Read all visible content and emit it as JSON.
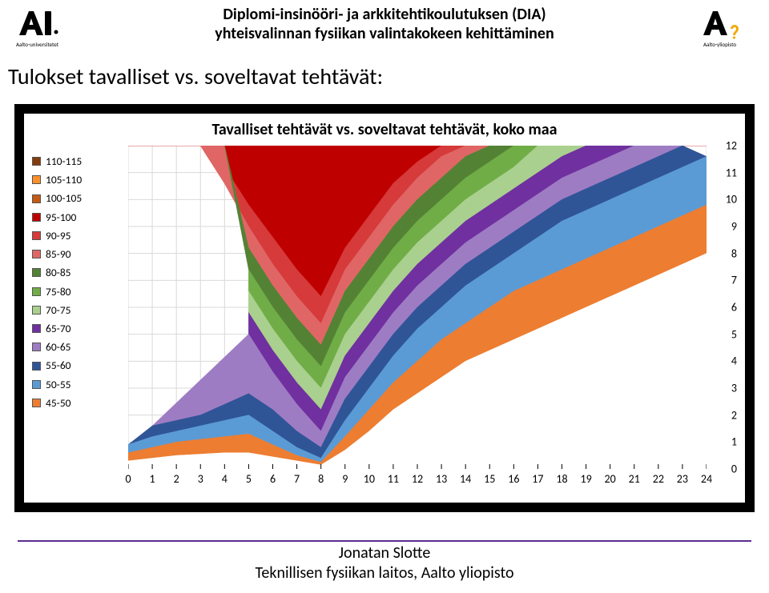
{
  "header": {
    "line1": "Diplomi-insinööri- ja arkkitehtikoulutuksen (DIA)",
    "line2": "yhteisvalinnan fysiikan valintakokeen kehittäminen"
  },
  "subtitle": "Tulokset tavalliset vs. soveltavat tehtävät:",
  "chart": {
    "type": "area-stacked-contour",
    "title": "Tavalliset tehtävät vs. soveltavat tehtävät, koko maa",
    "title_fontsize": 20,
    "background_color": "#ffffff",
    "frame_color": "#000000",
    "grid_color": "#d9d9d9",
    "x": {
      "min": 0,
      "max": 24,
      "tick_step": 1,
      "ticks": [
        0,
        1,
        2,
        3,
        4,
        5,
        6,
        7,
        8,
        9,
        10,
        11,
        12,
        13,
        14,
        15,
        16,
        17,
        18,
        19,
        20,
        21,
        22,
        23,
        24
      ]
    },
    "y": {
      "min": 0,
      "max": 12,
      "tick_step": 1,
      "ticks": [
        0,
        1,
        2,
        3,
        4,
        5,
        6,
        7,
        8,
        9,
        10,
        11,
        12
      ]
    },
    "legend_items": [
      {
        "label": "110-115",
        "color": "#843c0c"
      },
      {
        "label": "105-110",
        "color": "#ff8f2b"
      },
      {
        "label": "100-105",
        "color": "#c55a11"
      },
      {
        "label": "95-100",
        "color": "#bf0000"
      },
      {
        "label": "90-95",
        "color": "#d63a3a"
      },
      {
        "label": "85-90",
        "color": "#e06666"
      },
      {
        "label": "80-85",
        "color": "#548235"
      },
      {
        "label": "75-80",
        "color": "#70ad47"
      },
      {
        "label": "70-75",
        "color": "#a9d08e"
      },
      {
        "label": "65-70",
        "color": "#7030a0"
      },
      {
        "label": "60-65",
        "color": "#9e7cc3"
      },
      {
        "label": "55-60",
        "color": "#2f5597"
      },
      {
        "label": "50-55",
        "color": "#5b9bd5"
      },
      {
        "label": "45-50",
        "color": "#ed7d31"
      }
    ],
    "layers": [
      {
        "color": "#bf0000",
        "pts": [
          [
            0,
            12
          ],
          [
            3,
            12
          ],
          [
            4,
            11.2
          ],
          [
            5,
            9.8
          ],
          [
            6,
            8.6
          ],
          [
            7,
            7.4
          ],
          [
            8,
            6.4
          ],
          [
            9,
            8.2
          ],
          [
            10,
            9.4
          ],
          [
            11,
            10.6
          ],
          [
            12,
            11.4
          ],
          [
            13,
            12
          ],
          [
            24,
            12
          ]
        ],
        "base": 12,
        "close": "top"
      },
      {
        "color": "#d63a3a",
        "pts": [
          [
            3,
            12
          ],
          [
            4,
            10.6
          ],
          [
            5,
            9.0
          ],
          [
            6,
            7.6
          ],
          [
            7,
            6.4
          ],
          [
            8,
            5.4
          ],
          [
            9,
            7.4
          ],
          [
            10,
            8.6
          ],
          [
            11,
            9.8
          ],
          [
            12,
            10.8
          ],
          [
            13,
            11.6
          ],
          [
            14,
            12
          ]
        ],
        "close": "prev"
      },
      {
        "color": "#e06666",
        "pts": [
          [
            4,
            12
          ],
          [
            5,
            8.2
          ],
          [
            6,
            6.8
          ],
          [
            7,
            5.6
          ],
          [
            8,
            4.6
          ],
          [
            9,
            6.6
          ],
          [
            10,
            7.8
          ],
          [
            11,
            9.0
          ],
          [
            12,
            10.0
          ],
          [
            13,
            10.8
          ],
          [
            14,
            11.6
          ],
          [
            15,
            12
          ]
        ],
        "close": "prev"
      },
      {
        "color": "#548235",
        "pts": [
          [
            5,
            7.4
          ],
          [
            6,
            6.0
          ],
          [
            7,
            4.8
          ],
          [
            8,
            3.8
          ],
          [
            9,
            5.8
          ],
          [
            10,
            7.0
          ],
          [
            11,
            8.2
          ],
          [
            12,
            9.2
          ],
          [
            13,
            10.0
          ],
          [
            14,
            10.8
          ],
          [
            15,
            11.4
          ],
          [
            16,
            12
          ]
        ],
        "close": "prev"
      },
      {
        "color": "#70ad47",
        "pts": [
          [
            5,
            6.6
          ],
          [
            6,
            5.2
          ],
          [
            7,
            4.0
          ],
          [
            8,
            3.0
          ],
          [
            9,
            5.0
          ],
          [
            10,
            6.2
          ],
          [
            11,
            7.4
          ],
          [
            12,
            8.4
          ],
          [
            13,
            9.2
          ],
          [
            14,
            10.0
          ],
          [
            15,
            10.6
          ],
          [
            16,
            11.2
          ],
          [
            17,
            12
          ]
        ],
        "close": "prev"
      },
      {
        "color": "#a9d08e",
        "pts": [
          [
            5,
            5.8
          ],
          [
            6,
            4.4
          ],
          [
            7,
            3.2
          ],
          [
            8,
            2.2
          ],
          [
            9,
            4.2
          ],
          [
            10,
            5.4
          ],
          [
            11,
            6.6
          ],
          [
            12,
            7.6
          ],
          [
            13,
            8.4
          ],
          [
            14,
            9.2
          ],
          [
            15,
            9.8
          ],
          [
            16,
            10.4
          ],
          [
            17,
            11.0
          ],
          [
            18,
            11.6
          ],
          [
            19,
            12
          ]
        ],
        "close": "prev"
      },
      {
        "color": "#7030a0",
        "pts": [
          [
            5,
            5.0
          ],
          [
            6,
            3.6
          ],
          [
            7,
            2.4
          ],
          [
            8,
            1.4
          ],
          [
            9,
            3.4
          ],
          [
            10,
            4.6
          ],
          [
            11,
            5.8
          ],
          [
            12,
            6.8
          ],
          [
            13,
            7.6
          ],
          [
            14,
            8.4
          ],
          [
            15,
            9.0
          ],
          [
            16,
            9.6
          ],
          [
            17,
            10.2
          ],
          [
            18,
            10.8
          ],
          [
            19,
            11.2
          ],
          [
            20,
            11.6
          ],
          [
            21,
            12
          ]
        ],
        "close": "prev"
      },
      {
        "color": "#9e7cc3",
        "pts": [
          [
            1,
            1.6
          ],
          [
            2,
            1.8
          ],
          [
            3,
            2.0
          ],
          [
            4,
            2.4
          ],
          [
            5,
            2.8
          ],
          [
            6,
            2.2
          ],
          [
            7,
            1.4
          ],
          [
            8,
            0.8
          ],
          [
            9,
            2.6
          ],
          [
            10,
            3.8
          ],
          [
            11,
            5.0
          ],
          [
            12,
            6.0
          ],
          [
            13,
            6.8
          ],
          [
            14,
            7.6
          ],
          [
            15,
            8.2
          ],
          [
            16,
            8.8
          ],
          [
            17,
            9.4
          ],
          [
            18,
            10.0
          ],
          [
            19,
            10.4
          ],
          [
            20,
            10.8
          ],
          [
            21,
            11.2
          ],
          [
            22,
            11.6
          ],
          [
            23,
            12
          ]
        ],
        "close": "prev"
      },
      {
        "color": "#2f5597",
        "pts": [
          [
            0,
            0.9
          ],
          [
            1,
            1.2
          ],
          [
            2,
            1.4
          ],
          [
            3,
            1.6
          ],
          [
            4,
            1.8
          ],
          [
            5,
            2.0
          ],
          [
            6,
            1.4
          ],
          [
            7,
            0.8
          ],
          [
            8,
            0.4
          ],
          [
            9,
            1.8
          ],
          [
            10,
            3.0
          ],
          [
            11,
            4.2
          ],
          [
            12,
            5.2
          ],
          [
            13,
            6.0
          ],
          [
            14,
            6.8
          ],
          [
            15,
            7.4
          ],
          [
            16,
            8.0
          ],
          [
            17,
            8.6
          ],
          [
            18,
            9.2
          ],
          [
            19,
            9.6
          ],
          [
            20,
            10.0
          ],
          [
            21,
            10.4
          ],
          [
            22,
            10.8
          ],
          [
            23,
            11.2
          ],
          [
            24,
            11.6
          ]
        ],
        "close": "prev"
      },
      {
        "color": "#5b9bd5",
        "pts": [
          [
            0,
            0.6
          ],
          [
            1,
            0.8
          ],
          [
            2,
            1.0
          ],
          [
            3,
            1.1
          ],
          [
            4,
            1.2
          ],
          [
            5,
            1.3
          ],
          [
            6,
            0.9
          ],
          [
            7,
            0.5
          ],
          [
            8,
            0.25
          ],
          [
            9,
            1.2
          ],
          [
            10,
            2.2
          ],
          [
            11,
            3.2
          ],
          [
            12,
            4.0
          ],
          [
            13,
            4.8
          ],
          [
            14,
            5.4
          ],
          [
            15,
            6.0
          ],
          [
            16,
            6.6
          ],
          [
            17,
            7.0
          ],
          [
            18,
            7.4
          ],
          [
            19,
            7.8
          ],
          [
            20,
            8.2
          ],
          [
            21,
            8.6
          ],
          [
            22,
            9.0
          ],
          [
            23,
            9.4
          ],
          [
            24,
            9.8
          ]
        ],
        "close": "prev"
      },
      {
        "color": "#ed7d31",
        "pts": [
          [
            0,
            0.3
          ],
          [
            1,
            0.4
          ],
          [
            2,
            0.5
          ],
          [
            3,
            0.55
          ],
          [
            4,
            0.6
          ],
          [
            5,
            0.6
          ],
          [
            6,
            0.45
          ],
          [
            7,
            0.3
          ],
          [
            8,
            0.15
          ],
          [
            9,
            0.7
          ],
          [
            10,
            1.4
          ],
          [
            11,
            2.2
          ],
          [
            12,
            2.8
          ],
          [
            13,
            3.4
          ],
          [
            14,
            4.0
          ],
          [
            15,
            4.4
          ],
          [
            16,
            4.8
          ],
          [
            17,
            5.2
          ],
          [
            18,
            5.6
          ],
          [
            19,
            6.0
          ],
          [
            20,
            6.4
          ],
          [
            21,
            6.8
          ],
          [
            22,
            7.2
          ],
          [
            23,
            7.6
          ],
          [
            24,
            8.0
          ]
        ],
        "close": "prev"
      },
      {
        "color": "#ffffff",
        "pts": [
          [
            0,
            0
          ],
          [
            24,
            0
          ]
        ],
        "close": "prev"
      }
    ]
  },
  "footer": {
    "line1": "Jonatan Slotte",
    "line2": "Teknillisen fysiikan laitos, Aalto yliopisto"
  },
  "logos": {
    "left_label": "Aalto-universitetet",
    "right_label": "Aalto-yliopisto"
  }
}
